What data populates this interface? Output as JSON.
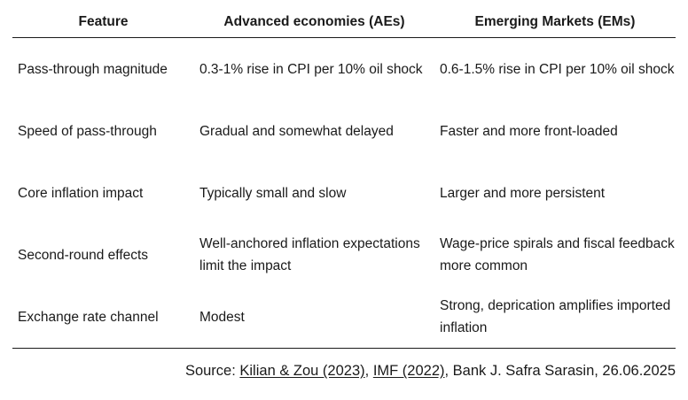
{
  "table": {
    "headers": [
      "Feature",
      "Advanced economies (AEs)",
      "Emerging Markets (EMs)"
    ],
    "rows": [
      [
        "Pass-through magnitude",
        "0.3-1% rise in CPI per 10% oil shock",
        "0.6-1.5% rise in CPI per 10% oil shock"
      ],
      [
        "Speed of pass-through",
        "Gradual and somewhat delayed",
        "Faster and more front-loaded"
      ],
      [
        "Core inflation impact",
        "Typically small and slow",
        "Larger and more persistent"
      ],
      [
        "Second-round effects",
        "Well-anchored inflation expectations limit the impact",
        "Wage-price spirals and fiscal feedback more common"
      ],
      [
        "Exchange rate channel",
        "Modest",
        "Strong, deprication amplifies imported inflation"
      ]
    ]
  },
  "source": {
    "prefix": "Source: ",
    "link1": "Kilian & Zou (2023)",
    "sep1": ", ",
    "link2": "IMF (2022)",
    "suffix": ", Bank J. Safra Sarasin, 26.06.2025"
  }
}
